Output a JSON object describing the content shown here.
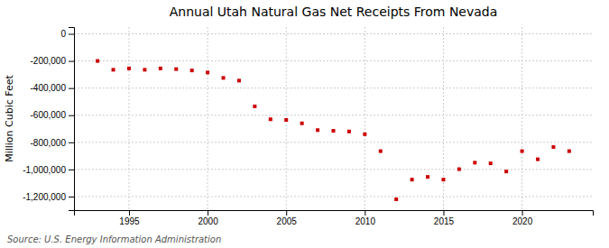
{
  "chart_data": {
    "type": "scatter",
    "title": "Annual Utah Natural Gas Net Receipts From Nevada",
    "ylabel": "Million Cubic Feet",
    "annotation": "Source: U.S. Energy Information Administration",
    "x": [
      1993,
      1994,
      1995,
      1996,
      1997,
      1998,
      1999,
      2000,
      2001,
      2002,
      2003,
      2004,
      2005,
      2006,
      2007,
      2008,
      2009,
      2010,
      2011,
      2012,
      2013,
      2014,
      2015,
      2016,
      2017,
      2018,
      2019,
      2020,
      2021,
      2022,
      2023
    ],
    "values": [
      -200000,
      -265000,
      -255000,
      -265000,
      -255000,
      -260000,
      -270000,
      -285000,
      -325000,
      -345000,
      -535000,
      -630000,
      -635000,
      -660000,
      -710000,
      -715000,
      -720000,
      -740000,
      -865000,
      -1220000,
      -1075000,
      -1055000,
      -1075000,
      -998000,
      -950000,
      -955000,
      -1015000,
      -865000,
      -925000,
      -835000,
      -865000
    ],
    "color": "#cc0000",
    "marker": "square",
    "xlim": [
      1991.5,
      2024.5
    ],
    "xticks": [
      1995,
      2000,
      2005,
      2010,
      2015,
      2020
    ],
    "ylim": [
      -1300000,
      50000
    ],
    "yticks": [
      0,
      {
        "value": -200000,
        "label": "-200,000"
      },
      {
        "value": -400000,
        "label": "-400,000"
      },
      {
        "value": -600000,
        "label": "-600,000"
      },
      {
        "value": -800000,
        "label": "-800,000"
      },
      {
        "value": -1000000,
        "label": "-1,000,000"
      },
      {
        "value": -1200000,
        "label": "-1,200,000"
      }
    ],
    "grid": true
  }
}
